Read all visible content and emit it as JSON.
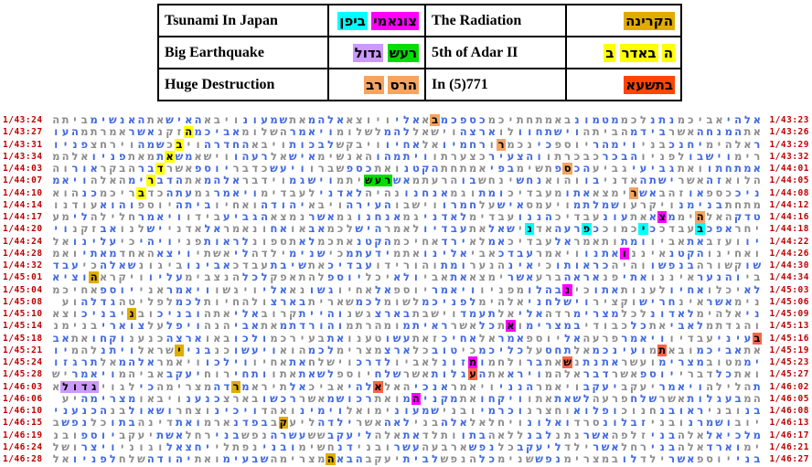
{
  "table": {
    "rows": [
      {
        "term_en": "Tsunami In Japan",
        "term_he": [
          {
            "text": "צונאמי",
            "bg": "#FF00FF"
          },
          {
            "text": "ביפן",
            "bg": "#00FFFF"
          }
        ],
        "term2_en": "The Radiation",
        "term2_he": [
          {
            "text": "הקרינה",
            "bg": "#E0AC00"
          }
        ]
      },
      {
        "term_en": "Big Earthquake",
        "term_he": [
          {
            "text": "רעש",
            "bg": "#00DD00"
          },
          {
            "text": "גדול",
            "bg": "#CC99FF"
          }
        ],
        "term2_en": "5th of Adar II",
        "term2_he": [
          {
            "text": "ה",
            "bg": "#FFFF00"
          },
          {
            "text": "באדר",
            "bg": "#FFFF00"
          },
          {
            "text": "ב",
            "bg": "#FFFF00"
          }
        ]
      },
      {
        "term_en": "Huge Destruction",
        "term_he": [
          {
            "text": "הרס",
            "bg": "#F4A460"
          },
          {
            "text": "רב",
            "bg": "#F4A460"
          }
        ],
        "term2_en": "In (5)771",
        "term2_he": [
          {
            "text": "בתשעא",
            "bg": "#FF4500"
          }
        ]
      }
    ]
  },
  "grid": {
    "colors": {
      "yellow": "#FFFF00",
      "orange": "#F4A460",
      "gold": "#E0AC00",
      "cyan": "#00FFFF",
      "magenta": "#FF00FF",
      "green": "#00DD00",
      "purple": "#CC99FF",
      "salmon": "#FF6347",
      "blue": "#4169E1",
      "gray": "#8C8C8C",
      "label": "#C00000"
    },
    "rows": [
      {
        "left": "1/43:24",
        "right": "1/43:23",
        "p": 0,
        "text": "אלהי אביכמ נתנ לכמ מטמונ באמתחתיכמ כספכמ בא אלי ויוצא אלהמ את שמעונ ויבא האיש את האנשימ ביתה"
      },
      {
        "left": "1/43:27",
        "right": "1/43:26",
        "p": 1,
        "text": "את המנחה אשר בידמ הביתה וישתחוו לו ארצה וישאל להמ לשלומ ויאמר השלומ אביכמ הזקנ אשר אמרתמ העו"
      },
      {
        "left": "1/43:31",
        "right": "1/43:29",
        "p": 0,
        "text": "ר אלהימ יחנכ בני וימהר יוספ כי נכמרו רחמיו אל אחיו ויבקש לבכות ויבא החדרה ויבכ שמה וירחצ פניו"
      },
      {
        "left": "1/43:34",
        "right": "1/43:32",
        "p": 1,
        "text": "רימ וישבו לפניו הבכר כבכרתו והצעיר כצערתו ויתמהו האנשימ איש אל רעהו וישא משאת מאת פניו אלהמ"
      },
      {
        "left": "1/44:03",
        "right": "1/44:01",
        "p": 0,
        "text": "אמתחתו ואת גביעי גביע הכספ תשימ בפי אמתחת הקטנ ואת כספ שברו ויעש כדבר יוספ אשר דבר הבקר אור וה"
      },
      {
        "left": "1/44:07",
        "right": "1/44:05",
        "p": 1,
        "text": "הלוא זה אשר ישתה אדני בו והוא נחש ינחש בו הרעתמ אשר עשיתמ וישגמ וידבר אלהמ את הדברימ האלה ויאמ"
      },
      {
        "left": "1/44:10",
        "right": "1/44:08",
        "p": 0,
        "text": "ניכ כספ או זהב אשר ימצא אתו מעבדיכ ומת וגמ אנחנו נהיה לאדני לעבדימ ויאמר גמ עתה כדבריכמ כנ הוא"
      },
      {
        "left": "1/44:14",
        "right": "1/44:12",
        "p": 1,
        "text": "מתחת בנימנ ויקרעו שמלתמ ויעמס איש על חמרו וישבו העירה ויבא יהודה ואחיו ביתה יוספ והוא עודנו"
      },
      {
        "left": "1/44:17",
        "right": "1/44:16",
        "p": 0,
        "text": "טדק האלהימ מצא את עונ עבדיכ הננו עבדימ לאדני גמ אנחנו גמ אשר נמצא הגביע בידו ויאמר חלילה לי מע"
      },
      {
        "left": "1/44:20",
        "right": "1/44:18",
        "p": 1,
        "text": "יחר אפכ בעבדכ כי כמוכ כפרעה אדני שאל את עבדיו לאמר היש לכמ אב או אח ונאמר אל אדני יש לנו אב זקנ וי"
      },
      {
        "left": "1/44:24",
        "right": "1/44:22",
        "p": 0,
        "text": "יו ועזב את אביו ומת ותאמר אל עבדיכ אמ לא ירד אחיכמ הקטנ אתכמ לא תספונ לראות פני ויהי כי עלינו אל"
      },
      {
        "left": "1/44:28",
        "right": "1/44:26",
        "p": 1,
        "text": "ואחינו הקטנ איננו אתנו ויאמר עבדכ אבי אלינו אתמ ידעתמ כי שנימ ילדה לי אשתי ויצא האחד מאתי ואמ"
      },
      {
        "left": "1/44:32",
        "right": "1/44:30",
        "p": 0,
        "text": "שו קשורה בנפשו והיה כראותו כי אינ הנער ומת והורידו עבדיכ את שיבת עבדכ אבינו ביגונ שאלה כי עבד"
      },
      {
        "left": "1/45:01",
        "right": "1/44:34",
        "p": 1,
        "text": "בי והנער איננו אתי פנ אראה ברע אשר ימצא את אבי ולא יכל יוספ להתאפק לכל הנצבימ עליו ויקרא הוציא"
      },
      {
        "left": "1/45:04",
        "right": "1/45:03",
        "p": 0,
        "text": "לא יכלו אחיו לענות אתו כי נבהלו מפניו ויאמר יוספ אל אחיו גשו נא אלי ויגשו ויאמר אני יוספ אחיכמ"
      },
      {
        "left": "1/45:08",
        "right": "1/45:06",
        "p": 1,
        "text": "נימ אשר אינ חריש וקציר וישלחני אלהימ לפניכמ לשומ לכמ שארית בארצ ולהחיות לכמ לפליטה גדלה וע"
      },
      {
        "left": "1/45:10",
        "right": "1/45:09",
        "p": 0,
        "text": "ני אלהימ לאדונ לכל מצרימ רדה אלי אל תעמד וישבת בארצ גשנ והיית קרוב אלי אתה ובניכ ובני בניכ וצא"
      },
      {
        "left": "1/45:14",
        "right": "1/45:13",
        "p": 1,
        "text": "והגדתמ לאבי את כל כבודי במצרימ ואת כל אשר ראיתמ ומהרתמ והורדתמ את אבי הנה ויפל על צוארי בנימנ"
      },
      {
        "left": "1/45:18",
        "right": "1/45:16",
        "p": 0,
        "text": "בעיני עבדיו ויאמר פרעה אל יוספ אמר אל אחיכ זאת עשו טענו את בעירכמ ולכו באו ארצה כנענ וקחו את אב"
      },
      {
        "left": "1/45:21",
        "right": "1/45:19",
        "p": 1,
        "text": "את אביכמ ובאתמ ועינכמ אל תחס על כליכמ כי טוב כל ארצ מצרימ לכמ הוא ויעשו כנ בני ישראל ויתנ להמ יו"
      },
      {
        "left": "1/45:24",
        "right": "1/45:23",
        "p": 0,
        "text": "ימ מטוב מצרימ ועשר אתנת נשאת בר ולחמ ומזונ לאביו לדרכ וישלח את אחיו וילכו ויאמר אלהמ אל תרגזו"
      },
      {
        "left": "1/45:28",
        "right": "1/45:27",
        "p": 1,
        "text": "ואת כל דברי יוספ אשר דבר אלהמ וירא את העגלות אשר שלח יוספ לשאת אתו ותחי רוח יעקב אביהמ ויאמר יש"
      },
      {
        "left": "1/46:03",
        "right": "1/46:02",
        "p": 0,
        "text": "ת הלילה ויאמר יעקב יעקב ויאמר הנני ויאמר אנכי האל אלהי אביכ אל תירא מרדה מצרימה כי לגוי גדול א"
      },
      {
        "left": "1/46:06",
        "right": "1/46:05",
        "p": 1,
        "text": "המ בעגלות אשר שלח פרעה לשאת אתו ויקחו את מקניהמ ואת רכושמ אשר רכשו בארצ כנענ ויבאו מצרימה יע"
      },
      {
        "left": "1/46:10",
        "right": "1/46:08",
        "p": 0,
        "text": "בנ ובני ראובנ חנוכ ופלוא וחצרנ וכרמי ובני שמעונ ימואל וימינ ואהד ויכינ וצחר ושאול בנ הכנעני"
      },
      {
        "left": "1/46:15",
        "right": "1/46:13",
        "p": 1,
        "text": "יוב ושמרנ ובני זבלונ סרד ואלונ ויחלאל אלה בני לאה אשר ילדה ליעקב בפדנ ארמ ואת דינה בתו כל נפש ב"
      },
      {
        "left": "1/46:19",
        "right": "1/46:17",
        "p": 0,
        "text": "מלכיאל אלה בני זלפה אשר נתנ לבנ ללאה בתו ותלד את אלה ליעקב שש עשרה נפש בני רחל אשת יעקב יוספ ובנ"
      },
      {
        "left": "1/46:24",
        "right": "1/46:21",
        "p": 1,
        "text": "ימ וארד אלה בני רחל אשר ילד ליעקב כל נפש ארבעה עשר ובני דנ חשימ ובני נפתלי יחצאל וגוני ויצר ושל"
      },
      {
        "left": "1/46:28",
        "right": "1/46:27",
        "p": 0,
        "text": "בני יוספ אשר ילד לו במצרימ נפש שנימ כל הנפש לבית יעקב הבאה מצרימה שבעימ ואת יהודה שלח לפניו אל"
      }
    ],
    "highlights": [
      {
        "r": 1,
        "i": 61,
        "c": "yellow"
      },
      {
        "r": 2,
        "i": 62,
        "c": "yellow"
      },
      {
        "r": 3,
        "i": 63,
        "c": "yellow"
      },
      {
        "r": 4,
        "i": 64,
        "c": "yellow"
      },
      {
        "r": 5,
        "i": 65,
        "c": "yellow"
      },
      {
        "r": 6,
        "i": 66,
        "c": "yellow"
      },
      {
        "r": 0,
        "i": 35,
        "c": "orange"
      },
      {
        "r": 2,
        "i": 28,
        "c": "orange"
      },
      {
        "r": 4,
        "i": 21,
        "c": "orange"
      },
      {
        "r": 6,
        "i": 14,
        "c": "orange"
      },
      {
        "r": 8,
        "i": 7,
        "c": "orange"
      },
      {
        "r": 5,
        "i": 40,
        "c": "green"
      },
      {
        "r": 5,
        "i": 41,
        "c": "green"
      },
      {
        "r": 5,
        "i": 42,
        "c": "green"
      },
      {
        "r": 9,
        "i": 7,
        "c": "cyan"
      },
      {
        "r": 9,
        "i": 13,
        "c": "cyan"
      },
      {
        "r": 9,
        "i": 19,
        "c": "cyan"
      },
      {
        "r": 9,
        "i": 25,
        "c": "cyan"
      },
      {
        "r": 8,
        "i": 11,
        "c": "magenta"
      },
      {
        "r": 11,
        "i": 15,
        "c": "magenta"
      },
      {
        "r": 14,
        "i": 21,
        "c": "magenta"
      },
      {
        "r": 17,
        "i": 27,
        "c": "magenta"
      },
      {
        "r": 20,
        "i": 31,
        "c": "magenta"
      },
      {
        "r": 23,
        "i": 37,
        "c": "magenta"
      },
      {
        "r": 13,
        "i": 71,
        "c": "gold"
      },
      {
        "r": 16,
        "i": 67,
        "c": "gold"
      },
      {
        "r": 19,
        "i": 62,
        "c": "gold"
      },
      {
        "r": 22,
        "i": 56,
        "c": "gold"
      },
      {
        "r": 25,
        "i": 51,
        "c": "gold"
      },
      {
        "r": 28,
        "i": 46,
        "c": "gold"
      },
      {
        "r": 22,
        "i": 71,
        "c": "purple"
      },
      {
        "r": 22,
        "i": 72,
        "c": "purple"
      },
      {
        "r": 22,
        "i": 73,
        "c": "purple"
      },
      {
        "r": 22,
        "i": 74,
        "c": "purple"
      },
      {
        "r": 18,
        "i": 1,
        "c": "salmon"
      },
      {
        "r": 19,
        "i": 11,
        "c": "salmon"
      },
      {
        "r": 20,
        "i": 21,
        "c": "salmon"
      },
      {
        "r": 21,
        "i": 31,
        "c": "salmon"
      },
      {
        "r": 22,
        "i": 41,
        "c": "salmon"
      }
    ]
  }
}
